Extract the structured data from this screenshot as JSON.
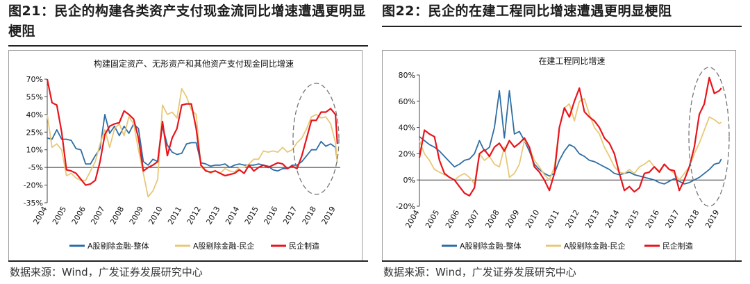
{
  "panels": [
    {
      "figure_title": "图21：民企的构建各类资产支付现金流同比增速遭遇更明显梗阻",
      "source": "数据来源：Wind，广发证券发展研究中心"
    },
    {
      "figure_title": "图22：民企的在建工程同比增速遭遇更明显梗阻",
      "source": "数据来源：Wind，广发证券发展研究中心"
    }
  ],
  "chart_data": [
    {
      "type": "line",
      "title": "构建固定资产、无形资产和其他资产支付现金同比增速",
      "ylim": [
        -35,
        70
      ],
      "yticks": [
        70,
        55,
        40,
        25,
        10,
        -5,
        -20,
        -35
      ],
      "ytick_labels": [
        "70%",
        "55%",
        "40%",
        "25%",
        "10%",
        "-5%",
        "-20%",
        "-35%"
      ],
      "xlim": [
        2004,
        2019.25
      ],
      "xticks": [
        2004,
        2005,
        2006,
        2007,
        2008,
        2009,
        2010,
        2011,
        2012,
        2013,
        2014,
        2015,
        2016,
        2017,
        2018,
        2019
      ],
      "xtick_labels": [
        "2004",
        "2005",
        "2006",
        "2007",
        "2008",
        "2009",
        "2010",
        "2011",
        "2012",
        "2013",
        "2014",
        "2015",
        "2016",
        "2017",
        "2018",
        "2019"
      ],
      "baseline": -5,
      "grid": false,
      "legend_position": "bottom",
      "annotation": "dashed-ellipse around 2018-2019",
      "series": [
        {
          "name": "A股剔除金融-整体",
          "color": "#2e6da4",
          "x": [
            2004,
            2004.25,
            2004.5,
            2004.75,
            2005,
            2005.25,
            2005.5,
            2005.75,
            2006,
            2006.25,
            2006.5,
            2006.75,
            2007,
            2007.25,
            2007.5,
            2007.75,
            2008,
            2008.25,
            2008.5,
            2008.75,
            2009,
            2009.25,
            2009.5,
            2009.75,
            2010,
            2010.25,
            2010.5,
            2010.75,
            2011,
            2011.25,
            2011.5,
            2011.75,
            2012,
            2012.25,
            2012.5,
            2012.75,
            2013,
            2013.25,
            2013.5,
            2013.75,
            2014,
            2014.25,
            2014.5,
            2014.75,
            2015,
            2015.25,
            2015.5,
            2015.75,
            2016,
            2016.25,
            2016.5,
            2016.75,
            2017,
            2017.25,
            2017.5,
            2017.75,
            2018,
            2018.25,
            2018.5,
            2018.75,
            2019,
            2019.1
          ],
          "values": [
            20,
            19,
            27,
            19,
            19,
            18,
            11,
            10,
            -2,
            -2,
            5,
            11,
            40,
            24,
            30,
            22,
            30,
            24,
            32,
            28,
            0,
            -3,
            2,
            0,
            30,
            14,
            8,
            6,
            7,
            15,
            16,
            16,
            -1,
            -2,
            -4,
            -3,
            -3,
            -2,
            -5,
            -3,
            -2,
            -3,
            -3,
            -3,
            -2,
            -3,
            -4,
            -7,
            -8,
            -6,
            -6,
            -3,
            -3,
            0,
            5,
            10,
            10,
            17,
            13,
            15,
            12,
            0
          ]
        },
        {
          "name": "A股剔除金融-民企",
          "color": "#e8c878",
          "x": [
            2004,
            2004.25,
            2004.5,
            2004.75,
            2005,
            2005.25,
            2005.5,
            2005.75,
            2006,
            2006.25,
            2006.5,
            2006.75,
            2007,
            2007.25,
            2007.5,
            2007.75,
            2008,
            2008.25,
            2008.5,
            2008.75,
            2009,
            2009.25,
            2009.5,
            2009.75,
            2010,
            2010.25,
            2010.5,
            2010.75,
            2011,
            2011.25,
            2011.5,
            2011.75,
            2012,
            2012.25,
            2012.5,
            2012.75,
            2013,
            2013.25,
            2013.5,
            2013.75,
            2014,
            2014.25,
            2014.5,
            2014.75,
            2015,
            2015.25,
            2015.5,
            2015.75,
            2016,
            2016.25,
            2016.5,
            2016.75,
            2017,
            2017.25,
            2017.5,
            2017.75,
            2018,
            2018.25,
            2018.5,
            2018.75,
            2019,
            2019.1
          ],
          "values": [
            40,
            12,
            15,
            10,
            -12,
            -10,
            -14,
            -16,
            -16,
            -8,
            0,
            15,
            27,
            12,
            28,
            32,
            22,
            38,
            32,
            10,
            -10,
            -30,
            -25,
            -15,
            48,
            40,
            42,
            37,
            62,
            55,
            44,
            40,
            -5,
            -7,
            -10,
            -8,
            -10,
            -6,
            -8,
            -9,
            -5,
            -5,
            -2,
            2,
            2,
            9,
            8,
            9,
            8,
            12,
            8,
            10,
            16,
            20,
            28,
            38,
            40,
            37,
            38,
            32,
            16,
            -1
          ]
        },
        {
          "name": "民企制造",
          "color": "#e8141c",
          "x": [
            2004,
            2004.25,
            2004.5,
            2004.75,
            2005,
            2005.25,
            2005.5,
            2005.75,
            2006,
            2006.25,
            2006.5,
            2006.75,
            2007,
            2007.25,
            2007.5,
            2007.75,
            2008,
            2008.25,
            2008.5,
            2008.75,
            2009,
            2009.25,
            2009.5,
            2009.75,
            2010,
            2010.25,
            2010.5,
            2010.75,
            2011,
            2011.25,
            2011.5,
            2011.75,
            2012,
            2012.25,
            2012.5,
            2012.75,
            2013,
            2013.25,
            2013.5,
            2013.75,
            2014,
            2014.25,
            2014.5,
            2014.75,
            2015,
            2015.25,
            2015.5,
            2015.75,
            2016,
            2016.25,
            2016.5,
            2016.75,
            2017,
            2017.25,
            2017.5,
            2017.75,
            2018,
            2018.25,
            2018.5,
            2018.75,
            2019,
            2019.1
          ],
          "values": [
            70,
            50,
            48,
            25,
            -7,
            -8,
            -10,
            -15,
            -20,
            -19,
            -16,
            0,
            23,
            30,
            32,
            33,
            43,
            40,
            36,
            20,
            -8,
            -5,
            -3,
            0,
            34,
            5,
            20,
            28,
            48,
            49,
            49,
            28,
            -3,
            -8,
            -9,
            -8,
            -10,
            -12,
            -11,
            -10,
            -7,
            -10,
            -3,
            -8,
            -5,
            -3,
            -5,
            -3,
            -1,
            -2,
            -6,
            -4,
            -6,
            5,
            20,
            35,
            35,
            42,
            42,
            45,
            40,
            15
          ]
        }
      ]
    },
    {
      "type": "line",
      "title": "在建工程同比增速",
      "ylim": [
        -20,
        80
      ],
      "yticks": [
        80,
        60,
        40,
        20,
        0,
        -20
      ],
      "ytick_labels": [
        "80%",
        "60%",
        "40%",
        "20%",
        "0%",
        "-20%"
      ],
      "xlim": [
        2004,
        2019.25
      ],
      "xticks": [
        2004,
        2005,
        2006,
        2007,
        2008,
        2009,
        2010,
        2011,
        2012,
        2013,
        2014,
        2015,
        2016,
        2017,
        2018,
        2019
      ],
      "xtick_labels": [
        "2004",
        "2005",
        "2006",
        "2007",
        "2008",
        "2009",
        "2010",
        "2011",
        "2012",
        "2013",
        "2014",
        "2015",
        "2016",
        "2017",
        "2018",
        "2019"
      ],
      "baseline": 0,
      "grid": false,
      "legend_position": "bottom",
      "annotation": "dashed-ellipse around 2018-2019",
      "series": [
        {
          "name": "A股剔除金融-整体",
          "color": "#2e6da4",
          "x": [
            2004,
            2004.25,
            2004.5,
            2004.75,
            2005,
            2005.25,
            2005.5,
            2005.75,
            2006,
            2006.25,
            2006.5,
            2006.75,
            2007,
            2007.25,
            2007.5,
            2007.75,
            2008,
            2008.25,
            2008.5,
            2008.75,
            2009,
            2009.25,
            2009.5,
            2009.75,
            2010,
            2010.25,
            2010.5,
            2010.75,
            2011,
            2011.25,
            2011.5,
            2011.75,
            2012,
            2012.25,
            2012.5,
            2012.75,
            2013,
            2013.25,
            2013.5,
            2013.75,
            2014,
            2014.25,
            2014.5,
            2014.75,
            2015,
            2015.25,
            2015.5,
            2015.75,
            2016,
            2016.25,
            2016.5,
            2016.75,
            2017,
            2017.25,
            2017.5,
            2017.75,
            2018,
            2018.25,
            2018.5,
            2018.75,
            2019,
            2019.1
          ],
          "values": [
            33,
            30,
            27,
            25,
            22,
            18,
            14,
            10,
            12,
            15,
            16,
            20,
            30,
            22,
            25,
            40,
            68,
            32,
            68,
            35,
            37,
            30,
            22,
            12,
            8,
            5,
            3,
            5,
            15,
            22,
            27,
            25,
            20,
            18,
            15,
            14,
            12,
            10,
            8,
            5,
            4,
            5,
            6,
            4,
            3,
            2,
            1,
            0,
            -2,
            -3,
            -1,
            1,
            -1,
            -3,
            -2,
            0,
            2,
            5,
            8,
            12,
            13,
            16
          ]
        },
        {
          "name": "A股剔除金融-民企",
          "color": "#e8c878",
          "x": [
            2004,
            2004.25,
            2004.5,
            2004.75,
            2005,
            2005.25,
            2005.5,
            2005.75,
            2006,
            2006.25,
            2006.5,
            2006.75,
            2007,
            2007.25,
            2007.5,
            2007.75,
            2008,
            2008.25,
            2008.5,
            2008.75,
            2009,
            2009.25,
            2009.5,
            2009.75,
            2010,
            2010.25,
            2010.5,
            2010.75,
            2011,
            2011.25,
            2011.5,
            2011.75,
            2012,
            2012.25,
            2012.5,
            2012.75,
            2013,
            2013.25,
            2013.5,
            2013.75,
            2014,
            2014.25,
            2014.5,
            2014.75,
            2015,
            2015.25,
            2015.5,
            2015.75,
            2016,
            2016.25,
            2016.5,
            2016.75,
            2017,
            2017.25,
            2017.5,
            2017.75,
            2018,
            2018.25,
            2018.5,
            2018.75,
            2019,
            2019.1
          ],
          "values": [
            30,
            20,
            15,
            8,
            6,
            4,
            2,
            0,
            3,
            5,
            2,
            -3,
            20,
            15,
            18,
            12,
            10,
            25,
            2,
            5,
            12,
            30,
            25,
            15,
            10,
            4,
            0,
            10,
            40,
            55,
            58,
            45,
            60,
            62,
            50,
            40,
            35,
            25,
            18,
            10,
            6,
            5,
            8,
            5,
            10,
            12,
            15,
            10,
            7,
            12,
            8,
            5,
            0,
            5,
            10,
            20,
            28,
            38,
            48,
            46,
            43,
            44
          ]
        },
        {
          "name": "民企制造",
          "color": "#e8141c",
          "x": [
            2004,
            2004.25,
            2004.5,
            2004.75,
            2005,
            2005.25,
            2005.5,
            2005.75,
            2006,
            2006.25,
            2006.5,
            2006.75,
            2007,
            2007.25,
            2007.5,
            2007.75,
            2008,
            2008.25,
            2008.5,
            2008.75,
            2009,
            2009.25,
            2009.5,
            2009.75,
            2010,
            2010.25,
            2010.5,
            2010.75,
            2011,
            2011.25,
            2011.5,
            2011.75,
            2012,
            2012.25,
            2012.5,
            2012.75,
            2013,
            2013.25,
            2013.5,
            2013.75,
            2014,
            2014.25,
            2014.5,
            2014.75,
            2015,
            2015.25,
            2015.5,
            2015.75,
            2016,
            2016.25,
            2016.5,
            2016.75,
            2017,
            2017.25,
            2017.5,
            2017.75,
            2018,
            2018.25,
            2018.5,
            2018.75,
            2019,
            2019.1
          ],
          "values": [
            17,
            38,
            35,
            33,
            15,
            5,
            2,
            0,
            -5,
            -10,
            -12,
            -6,
            20,
            23,
            18,
            25,
            28,
            22,
            30,
            25,
            28,
            32,
            25,
            10,
            6,
            0,
            -8,
            5,
            40,
            55,
            48,
            60,
            70,
            52,
            48,
            45,
            40,
            32,
            28,
            20,
            5,
            -8,
            -5,
            -9,
            -6,
            5,
            6,
            10,
            6,
            12,
            8,
            7,
            -8,
            0,
            10,
            25,
            50,
            58,
            78,
            66,
            68,
            70
          ]
        }
      ]
    }
  ]
}
